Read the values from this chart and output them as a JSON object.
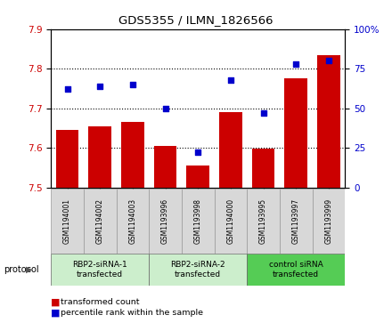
{
  "title": "GDS5355 / ILMN_1826566",
  "samples": [
    "GSM1194001",
    "GSM1194002",
    "GSM1194003",
    "GSM1193996",
    "GSM1193998",
    "GSM1194000",
    "GSM1193995",
    "GSM1193997",
    "GSM1193999"
  ],
  "bar_values": [
    7.645,
    7.655,
    7.665,
    7.605,
    7.555,
    7.69,
    7.598,
    7.775,
    7.835
  ],
  "percentile_values": [
    62,
    64,
    65,
    50,
    22,
    68,
    47,
    78,
    80
  ],
  "ylim_left": [
    7.5,
    7.9
  ],
  "ylim_right": [
    0,
    100
  ],
  "yticks_left": [
    7.5,
    7.6,
    7.7,
    7.8,
    7.9
  ],
  "yticks_right": [
    0,
    25,
    50,
    75,
    100
  ],
  "bar_color": "#cc0000",
  "dot_color": "#0000cc",
  "groups": [
    {
      "label": "RBP2-siRNA-1\ntransfected",
      "indices": [
        0,
        1,
        2
      ],
      "color": "#cceecc"
    },
    {
      "label": "RBP2-siRNA-2\ntransfected",
      "indices": [
        3,
        4,
        5
      ],
      "color": "#cceecc"
    },
    {
      "label": "control siRNA\ntransfected",
      "indices": [
        6,
        7,
        8
      ],
      "color": "#55cc55"
    }
  ],
  "legend_bar_label": "transformed count",
  "legend_dot_label": "percentile rank within the sample",
  "protocol_label": "protocol",
  "bg_color": "#d8d8d8",
  "plot_bg": "#ffffff",
  "right_tick_labels": [
    "0",
    "25",
    "50",
    "75",
    "100%"
  ]
}
